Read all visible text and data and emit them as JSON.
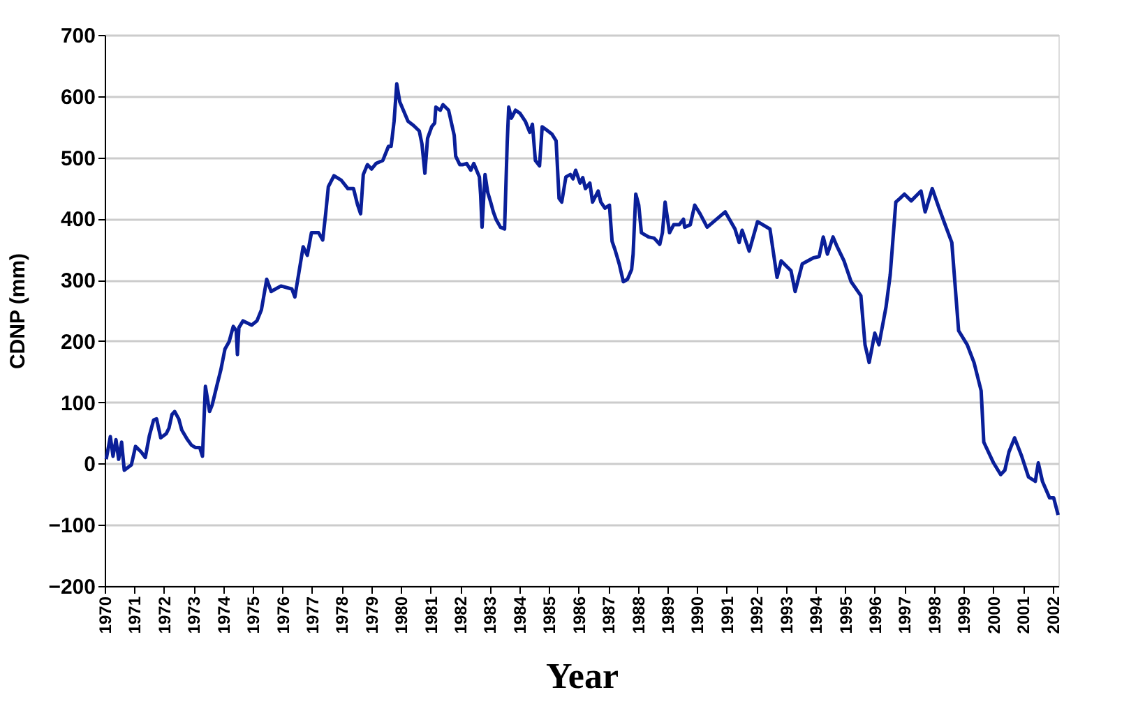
{
  "chart_data": {
    "type": "line",
    "xlabel": "Year",
    "ylabel": "CDNP  (mm)",
    "xlim": [
      1970,
      2002.2
    ],
    "ylim": [
      -200,
      700
    ],
    "xticks": [
      1970,
      1971,
      1972,
      1973,
      1974,
      1975,
      1976,
      1977,
      1978,
      1979,
      1980,
      1981,
      1982,
      1983,
      1984,
      1985,
      1986,
      1987,
      1988,
      1989,
      1990,
      1991,
      1992,
      1993,
      1994,
      1995,
      1996,
      1997,
      1998,
      1999,
      2000,
      2001,
      2002
    ],
    "yticks": [
      -200,
      -100,
      0,
      100,
      200,
      300,
      400,
      500,
      600,
      700
    ],
    "grid": "y",
    "legend": false,
    "marker": "none",
    "line_style": "solid",
    "series": [
      {
        "color": "#0a1f99",
        "x": [
          1970.05,
          1970.19,
          1970.28,
          1970.38,
          1970.47,
          1970.57,
          1970.66,
          1970.9,
          1971.04,
          1971.23,
          1971.37,
          1971.51,
          1971.65,
          1971.75,
          1971.89,
          1972.08,
          1972.17,
          1972.27,
          1972.36,
          1972.5,
          1972.6,
          1972.78,
          1972.93,
          1973.07,
          1973.21,
          1973.3,
          1973.4,
          1973.54,
          1973.63,
          1973.78,
          1973.92,
          1974.06,
          1974.2,
          1974.34,
          1974.44,
          1974.48,
          1974.53,
          1974.67,
          1974.96,
          1975.14,
          1975.29,
          1975.47,
          1975.62,
          1975.95,
          1976.32,
          1976.42,
          1976.56,
          1976.7,
          1976.84,
          1976.98,
          1977.22,
          1977.36,
          1977.46,
          1977.55,
          1977.74,
          1977.98,
          1978.21,
          1978.4,
          1978.54,
          1978.64,
          1978.73,
          1978.87,
          1979.01,
          1979.16,
          1979.39,
          1979.58,
          1979.67,
          1979.77,
          1979.86,
          1979.96,
          1980.1,
          1980.24,
          1980.43,
          1980.62,
          1980.71,
          1980.81,
          1980.9,
          1981.04,
          1981.14,
          1981.18,
          1981.33,
          1981.42,
          1981.61,
          1981.8,
          1981.85,
          1981.99,
          1982.08,
          1982.22,
          1982.36,
          1982.46,
          1982.65,
          1982.69,
          1982.74,
          1982.84,
          1982.93,
          1983.03,
          1983.12,
          1983.21,
          1983.36,
          1983.5,
          1983.59,
          1983.64,
          1983.73,
          1983.87,
          1984.02,
          1984.2,
          1984.35,
          1984.44,
          1984.54,
          1984.68,
          1984.77,
          1984.91,
          1985.1,
          1985.24,
          1985.34,
          1985.43,
          1985.57,
          1985.72,
          1985.81,
          1985.9,
          1986.05,
          1986.14,
          1986.23,
          1986.38,
          1986.47,
          1986.66,
          1986.75,
          1986.89,
          1987.04,
          1987.13,
          1987.23,
          1987.37,
          1987.51,
          1987.65,
          1987.79,
          1987.84,
          1987.93,
          1988.03,
          1988.12,
          1988.36,
          1988.55,
          1988.74,
          1988.83,
          1988.92,
          1989.07,
          1989.21,
          1989.4,
          1989.54,
          1989.58,
          1989.77,
          1989.92,
          1990.1,
          1990.34,
          1990.95,
          1991.28,
          1991.42,
          1991.52,
          1991.76,
          1992.04,
          1992.46,
          1992.7,
          1992.84,
          1993.17,
          1993.31,
          1993.55,
          1993.93,
          1994.12,
          1994.26,
          1994.4,
          1994.59,
          1994.73,
          1994.96,
          1995.2,
          1995.53,
          1995.67,
          1995.81,
          1996.0,
          1996.14,
          1996.38,
          1996.52,
          1996.71,
          1996.85,
          1997.0,
          1997.23,
          1997.56,
          1997.7,
          1997.94,
          1998.17,
          1998.36,
          1998.6,
          1998.83,
          1999.12,
          1999.35,
          1999.59,
          1999.68,
          2000.01,
          2000.25,
          2000.39,
          2000.53,
          2000.72,
          2000.96,
          2001.19,
          2001.42,
          2001.52,
          2001.66,
          2001.9,
          2002.04,
          2002.19
        ],
        "values": [
          7,
          44,
          12,
          39,
          7,
          35,
          -11,
          -2,
          28,
          19,
          10,
          46,
          71,
          73,
          42,
          49,
          58,
          80,
          85,
          73,
          55,
          40,
          30,
          26,
          26,
          12,
          126,
          85,
          96,
          126,
          153,
          187,
          199,
          224,
          217,
          178,
          222,
          233,
          226,
          233,
          251,
          301,
          281,
          290,
          285,
          272,
          313,
          354,
          340,
          377,
          377,
          365,
          408,
          452,
          470,
          463,
          449,
          449,
          422,
          408,
          472,
          488,
          481,
          490,
          495,
          518,
          518,
          559,
          620,
          591,
          575,
          559,
          552,
          543,
          522,
          474,
          531,
          550,
          556,
          582,
          577,
          586,
          577,
          536,
          502,
          488,
          488,
          490,
          479,
          490,
          468,
          440,
          386,
          472,
          443,
          427,
          411,
          399,
          386,
          383,
          525,
          582,
          564,
          577,
          572,
          559,
          541,
          554,
          495,
          486,
          550,
          545,
          538,
          527,
          433,
          427,
          468,
          472,
          465,
          479,
          458,
          467,
          449,
          458,
          427,
          445,
          427,
          417,
          422,
          363,
          349,
          326,
          297,
          301,
          317,
          342,
          440,
          422,
          377,
          370,
          368,
          358,
          377,
          427,
          377,
          390,
          390,
          399,
          386,
          390,
          422,
          408,
          386,
          411,
          383,
          361,
          381,
          347,
          395,
          383,
          304,
          331,
          315,
          281,
          326,
          336,
          338,
          370,
          342,
          370,
          354,
          331,
          297,
          274,
          194,
          165,
          213,
          194,
          256,
          308,
          427,
          433,
          440,
          429,
          445,
          411,
          449,
          417,
          392,
          361,
          217,
          194,
          165,
          119,
          35,
          1,
          -18,
          -11,
          19,
          42,
          12,
          -22,
          -29,
          1,
          -29,
          -56,
          -56,
          -84
        ]
      }
    ]
  }
}
